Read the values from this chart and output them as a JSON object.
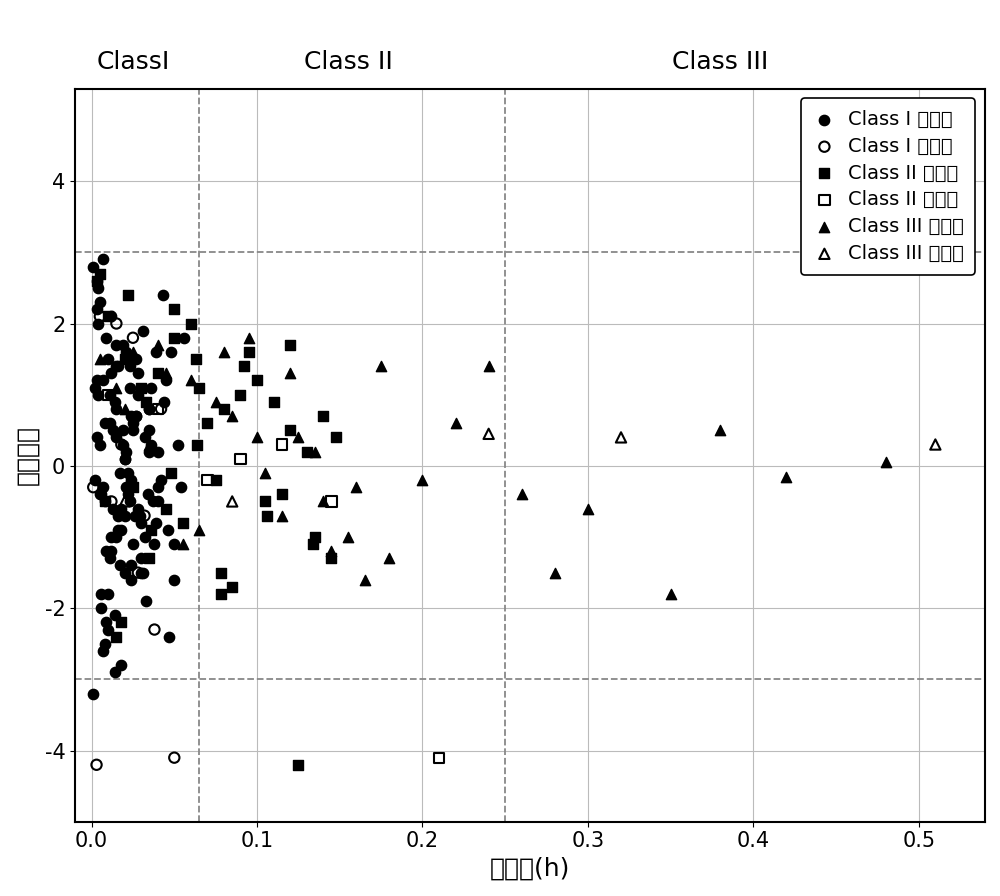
{
  "title_labels": [
    "ClassI",
    "Class II",
    "Class III"
  ],
  "xlabel": "杠杆值(h)",
  "ylabel": "标准残差",
  "xlim": [
    -0.01,
    0.54
  ],
  "ylim": [
    -5.0,
    5.3
  ],
  "yticks": [
    -4,
    -2,
    0,
    2,
    4
  ],
  "xticks": [
    0.0,
    0.1,
    0.2,
    0.3,
    0.4,
    0.5
  ],
  "vlines": [
    0.065,
    0.25
  ],
  "hlines": [
    3.0,
    -3.0
  ],
  "vline_color": "#888888",
  "hline_color": "#888888",
  "class1_train": {
    "x": [
      0.005,
      0.008,
      0.003,
      0.012,
      0.015,
      0.007,
      0.01,
      0.006,
      0.004,
      0.009,
      0.013,
      0.016,
      0.002,
      0.011,
      0.014,
      0.017,
      0.001,
      0.018,
      0.019,
      0.02,
      0.021,
      0.022,
      0.023,
      0.024,
      0.025,
      0.003,
      0.006,
      0.009,
      0.012,
      0.015,
      0.018,
      0.021,
      0.024,
      0.027,
      0.03,
      0.004,
      0.008,
      0.012,
      0.016,
      0.02,
      0.024,
      0.028,
      0.032,
      0.036,
      0.04,
      0.005,
      0.01,
      0.015,
      0.02,
      0.025,
      0.03,
      0.035,
      0.04,
      0.045,
      0.05,
      0.007,
      0.014,
      0.021,
      0.028,
      0.035,
      0.002,
      0.004,
      0.006,
      0.008,
      0.01,
      0.012,
      0.014,
      0.016,
      0.018,
      0.02,
      0.022,
      0.024,
      0.026,
      0.028,
      0.03,
      0.032,
      0.034,
      0.036,
      0.038,
      0.04,
      0.042,
      0.044,
      0.046,
      0.048,
      0.05,
      0.052,
      0.054,
      0.056,
      0.003,
      0.007,
      0.011,
      0.015,
      0.019,
      0.023,
      0.027,
      0.031,
      0.035,
      0.039,
      0.043,
      0.047,
      0.001,
      0.003,
      0.005,
      0.007,
      0.009,
      0.011,
      0.013,
      0.015,
      0.017,
      0.019,
      0.021,
      0.023,
      0.025,
      0.027,
      0.029,
      0.031,
      0.033,
      0.035,
      0.037,
      0.039
    ],
    "y": [
      0.3,
      -0.5,
      1.2,
      -1.0,
      0.8,
      -0.3,
      1.5,
      -1.8,
      2.0,
      -2.2,
      0.5,
      -0.7,
      1.1,
      -1.3,
      0.9,
      -0.1,
      2.8,
      -2.8,
      1.7,
      -1.5,
      0.2,
      -0.4,
      1.4,
      -1.6,
      0.6,
      2.2,
      -2.0,
      1.8,
      -1.2,
      0.4,
      -0.6,
      1.6,
      -1.4,
      0.7,
      -0.8,
      2.5,
      -2.5,
      1.3,
      -0.9,
      0.1,
      -0.2,
      1.0,
      -1.0,
      0.3,
      -0.3,
      2.3,
      -2.3,
      1.7,
      -0.7,
      0.5,
      -1.5,
      0.8,
      -0.5,
      1.2,
      -1.1,
      2.9,
      -2.9,
      1.5,
      -0.6,
      0.2,
      -0.2,
      1.0,
      -0.4,
      0.6,
      -1.8,
      2.1,
      -2.1,
      1.4,
      -0.9,
      0.1,
      -0.1,
      0.7,
      -0.7,
      1.3,
      -1.3,
      0.4,
      -0.4,
      1.1,
      -1.1,
      0.2,
      -0.2,
      0.9,
      -0.9,
      1.6,
      -1.6,
      0.3,
      -0.3,
      1.8,
      2.6,
      -2.6,
      1.0,
      -1.0,
      0.5,
      -0.5,
      1.5,
      -1.5,
      0.8,
      -0.8,
      2.4,
      -2.4,
      -3.2,
      0.4,
      -0.4,
      1.2,
      -1.2,
      0.6,
      -0.6,
      1.4,
      -1.4,
      0.3,
      -0.3,
      1.1,
      -1.1,
      0.7,
      -0.7,
      1.9,
      -1.9,
      0.5,
      -0.5,
      1.6
    ]
  },
  "class1_val": {
    "x": [
      0.005,
      0.012,
      0.025,
      0.038,
      0.05,
      0.003,
      0.018,
      0.032,
      0.001,
      0.015,
      0.028,
      0.042
    ],
    "y": [
      2.1,
      -0.5,
      1.8,
      -2.3,
      -4.1,
      -4.2,
      0.3,
      -0.7,
      -0.3,
      2.0,
      -1.5,
      0.8
    ]
  },
  "class2_train": {
    "x": [
      0.005,
      0.02,
      0.035,
      0.05,
      0.065,
      0.08,
      0.095,
      0.11,
      0.125,
      0.14,
      0.008,
      0.022,
      0.036,
      0.05,
      0.064,
      0.078,
      0.092,
      0.106,
      0.12,
      0.134,
      0.01,
      0.025,
      0.04,
      0.055,
      0.07,
      0.085,
      0.1,
      0.115,
      0.13,
      0.145,
      0.015,
      0.03,
      0.045,
      0.06,
      0.075,
      0.09,
      0.105,
      0.12,
      0.135,
      0.148,
      0.003,
      0.018,
      0.033,
      0.048,
      0.063,
      0.078
    ],
    "y": [
      2.7,
      1.5,
      -1.3,
      2.2,
      1.1,
      0.8,
      1.6,
      0.9,
      -4.2,
      0.7,
      -0.5,
      2.4,
      -0.9,
      1.8,
      0.3,
      -1.5,
      1.4,
      -0.7,
      0.5,
      -1.1,
      2.1,
      -0.3,
      1.3,
      -0.8,
      0.6,
      -1.7,
      1.2,
      -0.4,
      0.2,
      -1.3,
      -2.4,
      1.1,
      -0.6,
      2.0,
      -0.2,
      1.0,
      -0.5,
      1.7,
      -1.0,
      0.4,
      2.6,
      -2.2,
      0.9,
      -0.1,
      1.5,
      -1.8
    ]
  },
  "class2_val": {
    "x": [
      0.01,
      0.04,
      0.07,
      0.09,
      0.115,
      0.145,
      0.21
    ],
    "y": [
      1.0,
      0.8,
      -0.2,
      0.1,
      0.3,
      -0.5,
      -4.1
    ]
  },
  "class3_train": {
    "x": [
      0.005,
      0.02,
      0.04,
      0.06,
      0.08,
      0.1,
      0.12,
      0.14,
      0.16,
      0.18,
      0.2,
      0.22,
      0.24,
      0.26,
      0.28,
      0.3,
      0.35,
      0.38,
      0.42,
      0.48,
      0.015,
      0.035,
      0.055,
      0.075,
      0.095,
      0.115,
      0.135,
      0.155,
      0.175,
      0.025,
      0.045,
      0.065,
      0.085,
      0.105,
      0.125,
      0.145,
      0.165
    ],
    "y": [
      1.5,
      0.8,
      1.7,
      1.2,
      1.6,
      0.4,
      1.3,
      -0.5,
      -0.3,
      -1.3,
      -0.2,
      0.6,
      1.4,
      -0.4,
      -1.5,
      -0.6,
      -1.8,
      0.5,
      -0.15,
      0.05,
      1.1,
      0.3,
      -1.1,
      0.9,
      1.8,
      -0.7,
      0.2,
      -1.0,
      1.4,
      1.6,
      1.3,
      -0.9,
      0.7,
      -0.1,
      0.4,
      -1.2,
      -1.6
    ]
  },
  "class3_val": {
    "x": [
      0.02,
      0.085,
      0.24,
      0.32,
      0.51
    ],
    "y": [
      -0.5,
      -0.5,
      0.45,
      0.4,
      0.3
    ]
  },
  "legend_labels": [
    "Class I 训练集",
    "Class I 验证集",
    "Class II 训练集",
    "Class II 验证集",
    "Class III 训练集",
    "Class III 验证集"
  ],
  "marker_size": 55,
  "mew": 1.5,
  "font_size_axis_label": 18,
  "font_size_tick": 15,
  "font_size_title": 18,
  "font_size_legend": 14
}
